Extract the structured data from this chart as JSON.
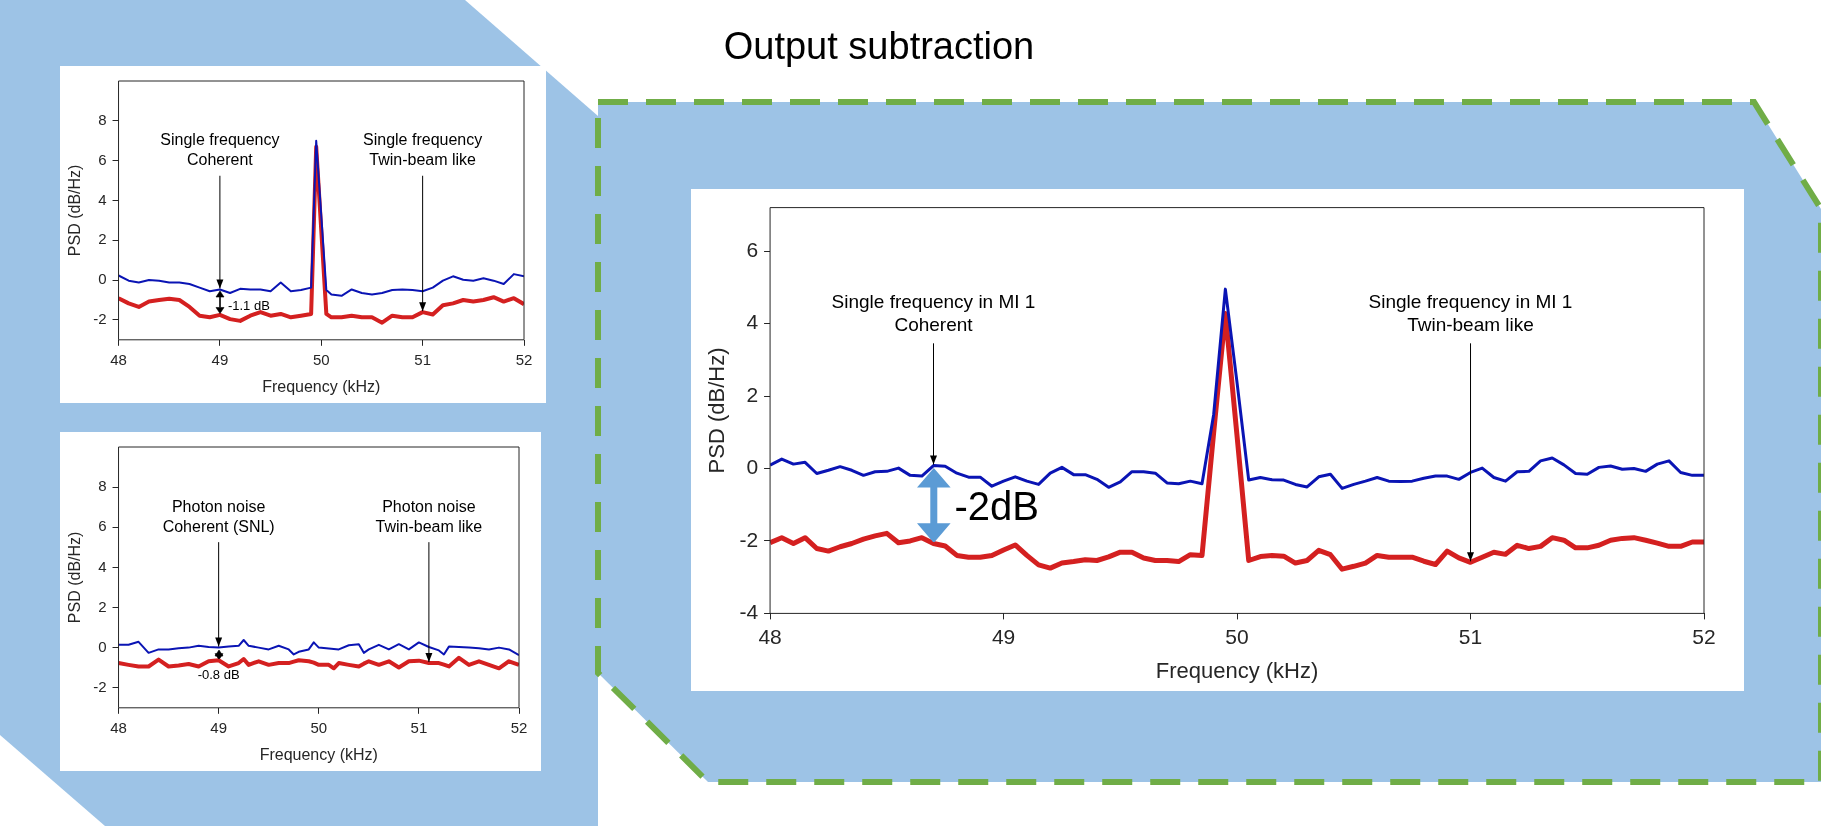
{
  "chart_data": [
    {
      "type": "line",
      "xlabel": "Frequency (kHz)",
      "ylabel": "PSD (dB/Hz)",
      "xlim": [
        48,
        52
      ],
      "xticks": [
        48,
        49,
        50,
        51,
        52
      ],
      "ylim": [
        -3,
        10
      ],
      "yticks": [
        -2,
        0,
        2,
        4,
        6,
        8
      ],
      "grid": false,
      "legend": false,
      "x": [
        48.0,
        48.1,
        48.2,
        48.3,
        48.4,
        48.5,
        48.6,
        48.7,
        48.8,
        48.9,
        49.0,
        49.1,
        49.2,
        49.3,
        49.4,
        49.5,
        49.6,
        49.7,
        49.8,
        49.9,
        49.95,
        50.05,
        50.1,
        50.2,
        50.3,
        50.4,
        50.5,
        50.6,
        50.7,
        50.8,
        50.9,
        51.0,
        51.1,
        51.2,
        51.3,
        51.4,
        51.5,
        51.6,
        51.7,
        51.8,
        51.9,
        52.0
      ],
      "series": [
        {
          "color": "#0a14b4",
          "values": [
            0.23,
            -0.03,
            -0.12,
            0,
            -0.03,
            -0.12,
            -0.12,
            -0.2,
            -0.38,
            -0.56,
            -0.47,
            -0.65,
            -0.44,
            -0.47,
            -0.47,
            -0.56,
            -0.12,
            -0.56,
            -0.5,
            -0.38,
            7.0,
            -0.5,
            -0.73,
            -0.79,
            -0.47,
            -0.65,
            -0.73,
            -0.65,
            -0.5,
            -0.47,
            -0.5,
            -0.56,
            -0.38,
            -0.03,
            0.19,
            0.02,
            -0.03,
            0.09,
            -0.03,
            -0.2,
            0.3,
            0.19
          ]
        },
        {
          "color": "#d42020",
          "values": [
            -0.91,
            -1.17,
            -1.35,
            -1.08,
            -1.0,
            -0.94,
            -1.0,
            -1.35,
            -1.79,
            -1.87,
            -1.75,
            -1.96,
            -2.05,
            -1.79,
            -1.61,
            -1.79,
            -1.7,
            -1.87,
            -1.79,
            -1.7,
            6.7,
            -1.7,
            -1.87,
            -1.87,
            -1.79,
            -1.87,
            -1.87,
            -2.14,
            -1.79,
            -1.87,
            -1.87,
            -1.61,
            -1.73,
            -1.26,
            -1.17,
            -1.0,
            -1.08,
            -1.0,
            -0.86,
            -1.08,
            -0.91,
            -1.21
          ]
        }
      ],
      "annotations": [
        {
          "text": "Single frequency\nCoherent",
          "x": 49.0,
          "y": -0.47
        },
        {
          "text": "-1.1 dB",
          "x": 49.0,
          "y": -0.47
        },
        {
          "text": "Single frequency\nTwin-beam like",
          "x": 51.0,
          "y": -1.61
        }
      ]
    },
    {
      "type": "line",
      "xlabel": "Frequency (kHz)",
      "ylabel": "PSD (dB/Hz)",
      "xlim": [
        48,
        52
      ],
      "xticks": [
        48,
        49,
        50,
        51,
        52
      ],
      "ylim": [
        -3,
        10
      ],
      "yticks": [
        -2,
        0,
        2,
        4,
        6,
        8
      ],
      "grid": false,
      "legend": false,
      "x": [
        48.0,
        48.1,
        48.2,
        48.3,
        48.4,
        48.5,
        48.6,
        48.7,
        48.8,
        48.9,
        49.0,
        49.1,
        49.2,
        49.25,
        49.3,
        49.4,
        49.5,
        49.6,
        49.7,
        49.75,
        49.8,
        49.9,
        49.95,
        50.0,
        50.1,
        50.15,
        50.2,
        50.3,
        50.4,
        50.45,
        50.5,
        50.6,
        50.7,
        50.8,
        50.9,
        51.0,
        51.1,
        51.2,
        51.25,
        51.3,
        51.4,
        51.5,
        51.6,
        51.7,
        51.8,
        51.9,
        52.0
      ],
      "series": [
        {
          "color": "#0a14b4",
          "values": [
            0.14,
            0.14,
            0.29,
            -0.26,
            -0.09,
            -0.09,
            -0.03,
            0,
            0.09,
            0.03,
            0,
            0.05,
            0.09,
            0.38,
            0.09,
            0,
            -0.09,
            0.09,
            -0.09,
            -0.34,
            -0.21,
            -0.09,
            0.26,
            0,
            -0.05,
            -0.07,
            -0.09,
            0.12,
            0.17,
            -0.26,
            -0.09,
            0.14,
            -0.09,
            0.17,
            -0.09,
            0.26,
            0.03,
            -0.14,
            -0.34,
            0.05,
            0.03,
            0,
            -0.03,
            -0.09,
            0,
            -0.09,
            -0.38
          ]
        },
        {
          "color": "#d42020",
          "values": [
            -0.77,
            -0.86,
            -0.94,
            -0.94,
            -0.6,
            -0.94,
            -0.89,
            -0.82,
            -0.94,
            -0.68,
            -0.63,
            -0.94,
            -0.77,
            -0.57,
            -0.86,
            -0.68,
            -0.86,
            -0.77,
            -0.77,
            -0.7,
            -0.63,
            -0.68,
            -0.75,
            -0.86,
            -0.86,
            -1.03,
            -0.77,
            -0.86,
            -0.94,
            -0.8,
            -0.68,
            -0.86,
            -0.68,
            -0.99,
            -0.68,
            -0.65,
            -0.77,
            -0.77,
            -0.85,
            -0.94,
            -0.51,
            -0.86,
            -0.68,
            -0.86,
            -1.03,
            -0.68,
            -0.86
          ]
        }
      ],
      "annotations": [
        {
          "text": "Photon noise\nCoherent (SNL)",
          "x": 49.0,
          "y": 0
        },
        {
          "text": "-0.8 dB",
          "x": 49.0,
          "y": -0.63
        },
        {
          "text": "Photon noise\nTwin-beam like",
          "x": 51.1,
          "y": -0.77
        }
      ]
    },
    {
      "type": "line",
      "title": "Output subtraction",
      "xlabel": "Frequency (kHz)",
      "ylabel": "PSD (dB/Hz)",
      "xlim": [
        48,
        52
      ],
      "xticks": [
        48,
        49,
        50,
        51,
        52
      ],
      "ylim": [
        -4,
        7.2
      ],
      "yticks": [
        -4,
        -2,
        0,
        2,
        4,
        6
      ],
      "grid": false,
      "legend": false,
      "x": [
        48.0,
        48.05,
        48.1,
        48.15,
        48.2,
        48.25,
        48.3,
        48.35,
        48.4,
        48.45,
        48.5,
        48.55,
        48.6,
        48.65,
        48.7,
        48.75,
        48.8,
        48.85,
        48.9,
        48.95,
        49.0,
        49.05,
        49.1,
        49.15,
        49.2,
        49.25,
        49.3,
        49.35,
        49.4,
        49.45,
        49.5,
        49.55,
        49.6,
        49.65,
        49.7,
        49.75,
        49.8,
        49.85,
        49.9,
        49.95,
        50.0,
        50.05,
        50.1,
        50.15,
        50.2,
        50.25,
        50.3,
        50.35,
        50.4,
        50.45,
        50.5,
        50.55,
        50.6,
        50.65,
        50.7,
        50.75,
        50.8,
        50.85,
        50.9,
        50.95,
        51.0,
        51.05,
        51.1,
        51.15,
        51.2,
        51.25,
        51.3,
        51.35,
        51.4,
        51.45,
        51.5,
        51.55,
        51.6,
        51.65,
        51.7,
        51.75,
        51.8,
        51.85,
        51.9,
        51.95,
        52.0
      ],
      "series": [
        {
          "color": "#0a14b4",
          "values": [
            0.09,
            0.26,
            0.12,
            0.17,
            -0.14,
            -0.05,
            0.05,
            -0.05,
            -0.19,
            -0.09,
            -0.08,
            0.01,
            -0.19,
            -0.21,
            0.08,
            0.06,
            -0.13,
            -0.24,
            -0.24,
            -0.49,
            -0.35,
            -0.23,
            -0.35,
            -0.44,
            -0.13,
            0.03,
            -0.17,
            -0.17,
            -0.3,
            -0.52,
            -0.37,
            -0.09,
            -0.09,
            -0.13,
            -0.4,
            -0.42,
            -0.35,
            -0.42,
            1.49,
            4.95,
            2.37,
            -0.32,
            -0.25,
            -0.31,
            -0.32,
            -0.44,
            -0.51,
            -0.23,
            -0.16,
            -0.55,
            -0.44,
            -0.35,
            -0.25,
            -0.35,
            -0.36,
            -0.35,
            -0.27,
            -0.21,
            -0.21,
            -0.3,
            -0.11,
            0.01,
            -0.25,
            -0.35,
            -0.09,
            -0.08,
            0.21,
            0.29,
            0.1,
            -0.14,
            -0.16,
            0.03,
            0.07,
            -0.02,
            0,
            -0.08,
            0.12,
            0.21,
            -0.11,
            -0.19,
            -0.19
          ]
        },
        {
          "color": "#d42020",
          "values": [
            -2.05,
            -1.91,
            -2.07,
            -1.91,
            -2.21,
            -2.28,
            -2.16,
            -2.07,
            -1.95,
            -1.86,
            -1.79,
            -2.05,
            -2.0,
            -1.91,
            -2.07,
            -2.14,
            -2.4,
            -2.45,
            -2.45,
            -2.4,
            -2.25,
            -2.11,
            -2.4,
            -2.66,
            -2.75,
            -2.61,
            -2.57,
            -2.52,
            -2.54,
            -2.44,
            -2.31,
            -2.31,
            -2.47,
            -2.54,
            -2.54,
            -2.57,
            -2.38,
            -2.4,
            1.0,
            4.28,
            0.9,
            -2.54,
            -2.43,
            -2.4,
            -2.42,
            -2.61,
            -2.54,
            -2.26,
            -2.38,
            -2.78,
            -2.7,
            -2.61,
            -2.4,
            -2.45,
            -2.45,
            -2.45,
            -2.56,
            -2.65,
            -2.28,
            -2.47,
            -2.59,
            -2.45,
            -2.31,
            -2.37,
            -2.12,
            -2.21,
            -2.15,
            -1.91,
            -1.98,
            -2.19,
            -2.19,
            -2.12,
            -1.98,
            -1.93,
            -1.91,
            -1.98,
            -2.06,
            -2.15,
            -2.15,
            -2.03,
            -2.03
          ]
        }
      ],
      "annotations": [
        {
          "text": "Single frequency in MI 1\nCoherent",
          "x": 48.7,
          "y": 0.08
        },
        {
          "text": "-2dB",
          "x": 48.7,
          "y": 0.08
        },
        {
          "text": "Single frequency in MI 1\nTwin-beam like",
          "x": 51.0,
          "y": -2.59
        }
      ]
    }
  ]
}
